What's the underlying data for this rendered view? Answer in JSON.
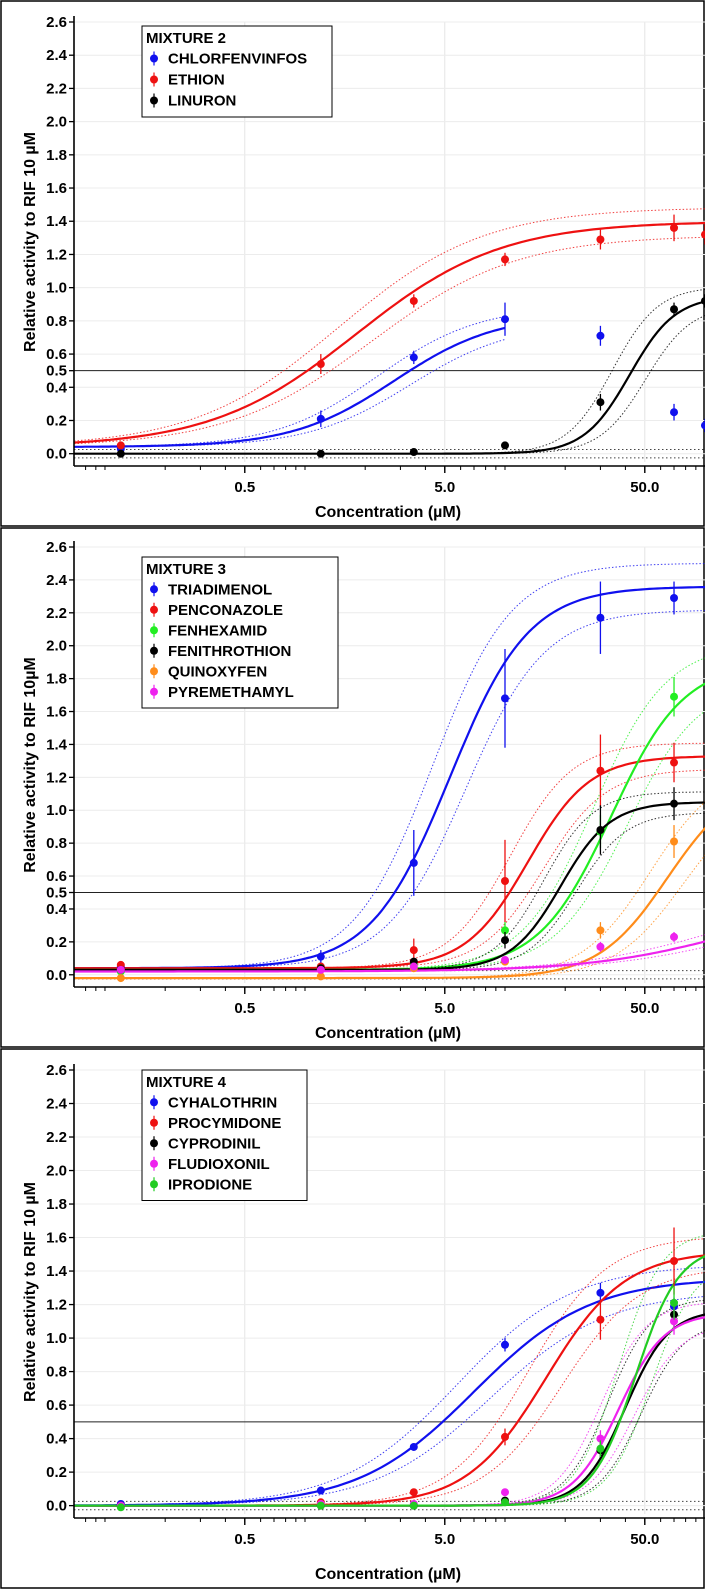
{
  "chart_data": [
    {
      "type": "scatter",
      "title": "MIXTURE 2",
      "xlabel": "Concentration (µM)",
      "ylabel": "Relative activity to RIF 10 µM",
      "xscale": "log",
      "xlim": [
        0.07,
        100
      ],
      "ylim": [
        -0.05,
        2.6
      ],
      "xticks": [
        "0.5",
        "5.0",
        "50.0"
      ],
      "xtick_values": [
        0.5,
        5.0,
        50.0
      ],
      "yticks": [
        "0.0",
        "0.2",
        "0.4",
        "0.5",
        "0.6",
        "0.8",
        "1.0",
        "1.2",
        "1.4",
        "1.6",
        "1.8",
        "2.0",
        "2.2",
        "2.4",
        "2.6"
      ],
      "ytick_values": [
        0.0,
        0.2,
        0.4,
        0.5,
        0.6,
        0.8,
        1.0,
        1.2,
        1.4,
        1.6,
        1.8,
        2.0,
        2.2,
        2.4,
        2.6
      ],
      "reference_line": 0.5,
      "legend": "top-left",
      "grid": true,
      "series": [
        {
          "name": "CHLORFENVINFOS",
          "color": "#1010ee",
          "x": [
            0.12,
            1.2,
            3.5,
            10,
            30,
            70,
            100
          ],
          "y": [
            0.03,
            0.21,
            0.58,
            0.81,
            0.71,
            0.25,
            0.17
          ],
          "err": [
            0.02,
            0.05,
            0.04,
            0.1,
            0.06,
            0.05,
            0.04
          ],
          "fit": {
            "bottom": 0.04,
            "top": 0.84,
            "ec50": 2.8,
            "hill": 1.7,
            "xmax": 10
          }
        },
        {
          "name": "ETHION",
          "color": "#ee1111",
          "x": [
            0.12,
            1.2,
            3.5,
            10,
            30,
            70,
            100
          ],
          "y": [
            0.05,
            0.54,
            0.92,
            1.17,
            1.29,
            1.36,
            1.32
          ],
          "err": [
            0.02,
            0.06,
            0.04,
            0.04,
            0.06,
            0.08,
            0.06
          ],
          "fit": {
            "bottom": 0.04,
            "top": 1.4,
            "ec50": 1.8,
            "hill": 1.2,
            "xmax": 110
          }
        },
        {
          "name": "LINURON",
          "color": "#000000",
          "x": [
            0.12,
            1.2,
            3.5,
            10,
            30,
            70,
            100
          ],
          "y": [
            0.0,
            0.0,
            0.01,
            0.05,
            0.31,
            0.87,
            0.92
          ],
          "err": [
            0.01,
            0.01,
            0.01,
            0.01,
            0.05,
            0.04,
            0.04
          ],
          "fit": {
            "bottom": 0.0,
            "top": 0.95,
            "ec50": 42,
            "hill": 3.8,
            "xmax": 110
          }
        }
      ]
    },
    {
      "type": "scatter",
      "title": "MIXTURE 3",
      "xlabel": "Concentration (µM)",
      "ylabel": "Relative activity to RIF 10µM",
      "xscale": "log",
      "xlim": [
        0.07,
        100
      ],
      "ylim": [
        -0.05,
        2.6
      ],
      "xticks": [
        "0.5",
        "5.0",
        "50.0"
      ],
      "xtick_values": [
        0.5,
        5.0,
        50.0
      ],
      "yticks": [
        "0.0",
        "0.2",
        "0.4",
        "0.5",
        "0.6",
        "0.8",
        "1.0",
        "1.2",
        "1.4",
        "1.6",
        "1.8",
        "2.0",
        "2.2",
        "2.4",
        "2.6"
      ],
      "ytick_values": [
        0.0,
        0.2,
        0.4,
        0.5,
        0.6,
        0.8,
        1.0,
        1.2,
        1.4,
        1.6,
        1.8,
        2.0,
        2.2,
        2.4,
        2.6
      ],
      "reference_line": 0.5,
      "legend": "top-left",
      "grid": true,
      "series": [
        {
          "name": "TRIADIMENOL",
          "color": "#1010ee",
          "x": [
            0.12,
            1.2,
            3.5,
            10,
            30,
            70
          ],
          "y": [
            0.05,
            0.11,
            0.68,
            1.68,
            2.17,
            2.29
          ],
          "err": [
            0.02,
            0.04,
            0.2,
            0.3,
            0.22,
            0.1
          ],
          "fit": {
            "bottom": 0.04,
            "top": 2.36,
            "ec50": 5.3,
            "hill": 2.2,
            "xmax": 110
          }
        },
        {
          "name": "PENCONAZOLE",
          "color": "#ee1111",
          "x": [
            0.12,
            1.2,
            3.5,
            10,
            30,
            70
          ],
          "y": [
            0.06,
            0.05,
            0.15,
            0.57,
            1.24,
            1.29
          ],
          "err": [
            0.02,
            0.02,
            0.07,
            0.25,
            0.22,
            0.12
          ],
          "fit": {
            "bottom": 0.04,
            "top": 1.33,
            "ec50": 13,
            "hill": 2.8,
            "xmax": 110
          }
        },
        {
          "name": "FENHEXAMID",
          "color": "#22ee22",
          "x": [
            0.12,
            1.2,
            3.5,
            10,
            30,
            70
          ],
          "y": [
            0.02,
            0.04,
            0.06,
            0.27,
            0.87,
            1.69
          ],
          "err": [
            0.01,
            0.02,
            0.03,
            0.05,
            0.1,
            0.12
          ],
          "fit": {
            "bottom": 0.03,
            "top": 1.9,
            "ec50": 34,
            "hill": 2.4,
            "xmax": 110
          }
        },
        {
          "name": "FENITHROTHION",
          "color": "#000000",
          "x": [
            0.12,
            1.2,
            3.5,
            10,
            30,
            70
          ],
          "y": [
            0.03,
            0.04,
            0.08,
            0.21,
            0.88,
            1.04
          ],
          "err": [
            0.01,
            0.02,
            0.02,
            0.05,
            0.15,
            0.1
          ],
          "fit": {
            "bottom": 0.03,
            "top": 1.05,
            "ec50": 19,
            "hill": 3.5,
            "xmax": 110
          }
        },
        {
          "name": "QUINOXYFEN",
          "color": "#ff8c1a",
          "x": [
            0.12,
            1.2,
            3.5,
            10,
            30,
            70
          ],
          "y": [
            -0.02,
            -0.01,
            0.04,
            0.08,
            0.27,
            0.81
          ],
          "err": [
            0.01,
            0.01,
            0.02,
            0.02,
            0.05,
            0.1
          ],
          "fit": {
            "bottom": -0.02,
            "top": 1.2,
            "ec50": 65,
            "hill": 2.5,
            "xmax": 110
          }
        },
        {
          "name": "PYREMETHAMYL",
          "color": "#ee22ee",
          "x": [
            0.12,
            1.2,
            3.5,
            10,
            30,
            70
          ],
          "y": [
            0.03,
            0.03,
            0.05,
            0.09,
            0.17,
            0.23
          ],
          "err": [
            0.01,
            0.01,
            0.01,
            0.02,
            0.03,
            0.03
          ],
          "fit": {
            "bottom": 0.02,
            "top": 0.5,
            "ec50": 150,
            "hill": 1.2,
            "xmax": 110
          }
        }
      ]
    },
    {
      "type": "scatter",
      "title": "MIXTURE 4",
      "xlabel": "Concentration (µM)",
      "ylabel": "Relative activity to RIF 10 µM",
      "xscale": "log",
      "xlim": [
        0.07,
        100
      ],
      "ylim": [
        -0.05,
        2.6
      ],
      "xticks": [
        "0.5",
        "5.0",
        "50.0"
      ],
      "xtick_values": [
        0.5,
        5.0,
        50.0
      ],
      "yticks": [
        "0.0",
        "0.2",
        "0.4",
        "0.6",
        "0.8",
        "1.0",
        "1.2",
        "1.4",
        "1.6",
        "1.8",
        "2.0",
        "2.2",
        "2.4",
        "2.6"
      ],
      "ytick_values": [
        0.0,
        0.2,
        0.4,
        0.6,
        0.8,
        1.0,
        1.2,
        1.4,
        1.6,
        1.8,
        2.0,
        2.2,
        2.4,
        2.6
      ],
      "reference_line": 0.5,
      "legend": "top-left",
      "grid": true,
      "series": [
        {
          "name": "CYHALOTHRIN",
          "color": "#1010ee",
          "x": [
            0.12,
            1.2,
            3.5,
            10,
            30,
            70
          ],
          "y": [
            0.01,
            0.09,
            0.35,
            0.96,
            1.27,
            1.19
          ],
          "err": [
            0.01,
            0.02,
            0.02,
            0.04,
            0.06,
            0.05
          ],
          "fit": {
            "bottom": 0.0,
            "top": 1.36,
            "ec50": 7,
            "hill": 1.5,
            "xmax": 110
          }
        },
        {
          "name": "PROCYMIDONE",
          "color": "#ee1111",
          "x": [
            0.12,
            1.2,
            3.5,
            10,
            30,
            70
          ],
          "y": [
            0.0,
            0.02,
            0.08,
            0.41,
            1.11,
            1.46
          ],
          "err": [
            0.01,
            0.01,
            0.02,
            0.05,
            0.12,
            0.2
          ],
          "fit": {
            "bottom": 0.0,
            "top": 1.52,
            "ec50": 16,
            "hill": 2.2,
            "xmax": 110
          }
        },
        {
          "name": "CYPRODINIL",
          "color": "#000000",
          "x": [
            0.12,
            1.2,
            3.5,
            10,
            30,
            70
          ],
          "y": [
            0.0,
            0.0,
            0.0,
            0.03,
            0.33,
            1.14
          ],
          "err": [
            0.01,
            0.01,
            0.01,
            0.01,
            0.05,
            0.08
          ],
          "fit": {
            "bottom": 0.0,
            "top": 1.17,
            "ec50": 40,
            "hill": 4,
            "xmax": 110
          }
        },
        {
          "name": "FLUDIOXONIL",
          "color": "#ee22ee",
          "x": [
            0.12,
            1.2,
            3.5,
            10,
            30,
            70
          ],
          "y": [
            0.0,
            0.01,
            0.01,
            0.08,
            0.4,
            1.1
          ],
          "err": [
            0.01,
            0.01,
            0.01,
            0.02,
            0.05,
            0.08
          ],
          "fit": {
            "bottom": 0.0,
            "top": 1.15,
            "ec50": 37,
            "hill": 3.8,
            "xmax": 110
          }
        },
        {
          "name": "IPRODIONE",
          "color": "#22cc22",
          "x": [
            0.12,
            1.2,
            3.5,
            10,
            30,
            70
          ],
          "y": [
            -0.01,
            0.0,
            0.0,
            0.02,
            0.34,
            1.21
          ],
          "err": [
            0.01,
            0.01,
            0.01,
            0.01,
            0.05,
            0.1
          ],
          "fit": {
            "bottom": 0.0,
            "top": 1.55,
            "ec50": 45,
            "hill": 4,
            "xmax": 110
          }
        }
      ]
    }
  ]
}
